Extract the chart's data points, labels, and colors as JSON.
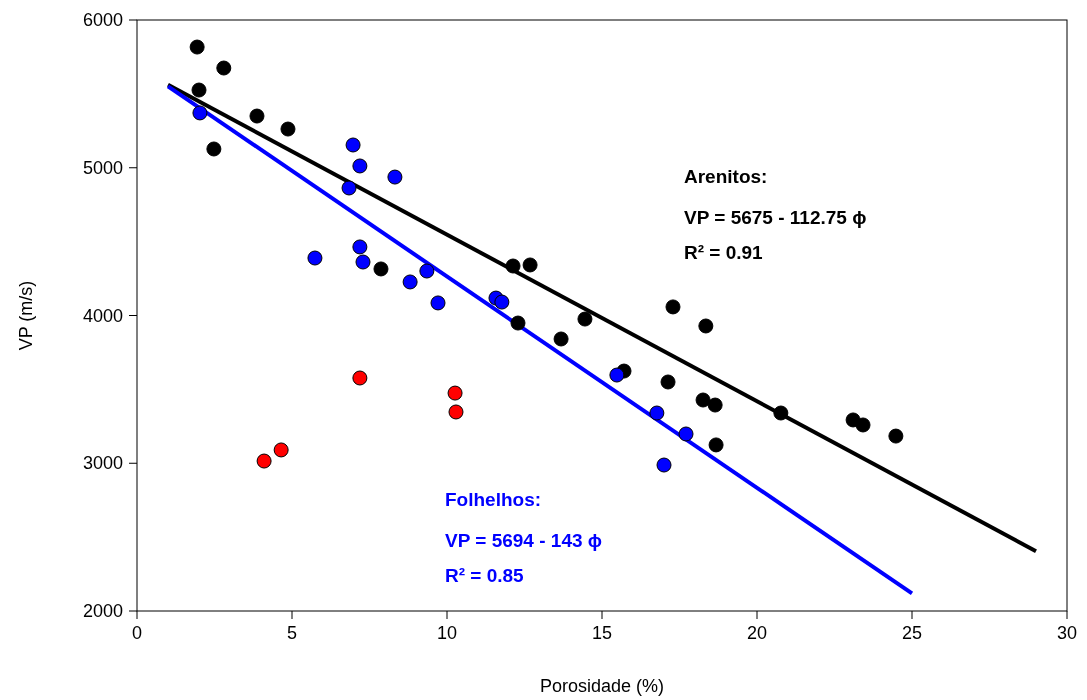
{
  "chart_data": {
    "type": "scatter",
    "xlabel": "Porosidade (%)",
    "ylabel": "VP (m/s)",
    "xlim": [
      0,
      30
    ],
    "ylim": [
      2000,
      6000
    ],
    "xticks": [
      0,
      5,
      10,
      15,
      20,
      25,
      30
    ],
    "yticks": [
      2000,
      3000,
      4000,
      5000,
      6000
    ],
    "grid": false,
    "marker": "circle",
    "series": [
      {
        "color": "#000000",
        "x": [
          1.94,
          2.0,
          2.8,
          2.48,
          3.87,
          4.87,
          7.87,
          12.13,
          12.68,
          12.29,
          13.68,
          14.45,
          15.71,
          17.13,
          17.29,
          18.35,
          18.26,
          18.65,
          18.68,
          20.77,
          23.1,
          23.42,
          24.48
        ],
        "values": [
          5817,
          5526,
          5675,
          5127,
          5350,
          5262,
          4315,
          4335,
          4342,
          3949,
          3841,
          3976,
          3624,
          3550,
          4058,
          3929,
          3428,
          3394,
          3124,
          3340,
          3293,
          3259,
          3184
        ]
      },
      {
        "color": "#0000ff",
        "x": [
          2.03,
          6.97,
          7.19,
          6.84,
          8.32,
          5.74,
          7.19,
          7.29,
          8.81,
          9.35,
          9.71,
          11.58,
          11.77,
          15.48,
          16.77,
          17.71,
          17.0
        ],
        "values": [
          5371,
          5154,
          5012,
          4863,
          4937,
          4389,
          4464,
          4362,
          4227,
          4301,
          4085,
          4118,
          4091,
          3597,
          3340,
          3198,
          2988
        ]
      },
      {
        "color": "#ff0000",
        "x": [
          4.1,
          4.65,
          7.19,
          10.26,
          10.29
        ],
        "values": [
          3015,
          3090,
          3577,
          3475,
          3347
        ]
      },
      {
        "type": "line",
        "marker": "none",
        "color": "#000000",
        "x": [
          1,
          29
        ],
        "values": [
          5562,
          2405
        ]
      },
      {
        "type": "line",
        "marker": "none",
        "color": "#0000ff",
        "x": [
          1,
          25
        ],
        "values": [
          5551,
          2119
        ]
      }
    ],
    "annotations": [
      "Arenitos:",
      "VP = 5675 - 112.75 ϕ",
      "R² = 0.91",
      "Folhelhos:",
      "VP = 5694 - 143 ϕ",
      "R² = 0.85"
    ]
  }
}
